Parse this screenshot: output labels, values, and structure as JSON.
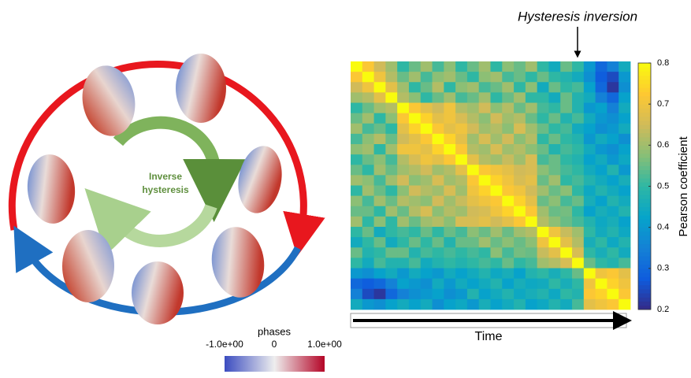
{
  "chart_data": {
    "type": "heatmap",
    "annotation": "Hysteresis inversion",
    "x_label": "Time",
    "colorbar_label": "Pearson coefficient",
    "zlim": [
      0.2,
      0.8
    ],
    "zticks": [
      0.2,
      0.3,
      0.4,
      0.5,
      0.6,
      0.7,
      0.8
    ],
    "colormap": [
      "#352a87",
      "#0f5cdd",
      "#1481d6",
      "#06a4ca",
      "#2eb7a4",
      "#87bf77",
      "#d1bb59",
      "#fec832",
      "#f9fb0e"
    ],
    "values": [
      [
        0.8,
        0.72,
        0.65,
        0.6,
        0.5,
        0.55,
        0.6,
        0.52,
        0.58,
        0.5,
        0.55,
        0.6,
        0.5,
        0.58,
        0.55,
        0.6,
        0.5,
        0.45,
        0.55,
        0.5,
        0.4,
        0.3,
        0.35,
        0.45
      ],
      [
        0.72,
        0.8,
        0.7,
        0.62,
        0.55,
        0.6,
        0.52,
        0.58,
        0.6,
        0.55,
        0.5,
        0.58,
        0.6,
        0.52,
        0.55,
        0.5,
        0.55,
        0.5,
        0.48,
        0.45,
        0.38,
        0.28,
        0.25,
        0.4
      ],
      [
        0.65,
        0.7,
        0.8,
        0.68,
        0.6,
        0.5,
        0.55,
        0.62,
        0.5,
        0.58,
        0.6,
        0.52,
        0.55,
        0.6,
        0.5,
        0.58,
        0.45,
        0.55,
        0.5,
        0.52,
        0.42,
        0.3,
        0.22,
        0.38
      ],
      [
        0.6,
        0.62,
        0.68,
        0.8,
        0.62,
        0.58,
        0.5,
        0.55,
        0.6,
        0.52,
        0.55,
        0.6,
        0.5,
        0.55,
        0.6,
        0.5,
        0.5,
        0.45,
        0.55,
        0.48,
        0.45,
        0.35,
        0.3,
        0.42
      ],
      [
        0.5,
        0.55,
        0.6,
        0.62,
        0.8,
        0.72,
        0.68,
        0.65,
        0.7,
        0.62,
        0.6,
        0.65,
        0.58,
        0.62,
        0.55,
        0.6,
        0.52,
        0.5,
        0.55,
        0.48,
        0.4,
        0.42,
        0.35,
        0.45
      ],
      [
        0.55,
        0.6,
        0.5,
        0.58,
        0.72,
        0.8,
        0.74,
        0.68,
        0.7,
        0.66,
        0.62,
        0.58,
        0.65,
        0.6,
        0.62,
        0.55,
        0.5,
        0.55,
        0.48,
        0.52,
        0.45,
        0.4,
        0.38,
        0.42
      ],
      [
        0.6,
        0.52,
        0.55,
        0.5,
        0.68,
        0.74,
        0.8,
        0.72,
        0.68,
        0.7,
        0.65,
        0.6,
        0.62,
        0.58,
        0.66,
        0.6,
        0.55,
        0.5,
        0.52,
        0.45,
        0.42,
        0.38,
        0.4,
        0.45
      ],
      [
        0.52,
        0.58,
        0.62,
        0.55,
        0.65,
        0.68,
        0.72,
        0.8,
        0.74,
        0.68,
        0.6,
        0.66,
        0.6,
        0.65,
        0.58,
        0.62,
        0.5,
        0.55,
        0.5,
        0.48,
        0.4,
        0.45,
        0.42,
        0.38
      ],
      [
        0.58,
        0.6,
        0.5,
        0.6,
        0.7,
        0.7,
        0.68,
        0.74,
        0.8,
        0.72,
        0.62,
        0.6,
        0.66,
        0.6,
        0.62,
        0.58,
        0.55,
        0.48,
        0.52,
        0.5,
        0.45,
        0.4,
        0.38,
        0.42
      ],
      [
        0.5,
        0.55,
        0.58,
        0.52,
        0.62,
        0.66,
        0.7,
        0.68,
        0.72,
        0.8,
        0.68,
        0.62,
        0.6,
        0.64,
        0.6,
        0.66,
        0.52,
        0.55,
        0.5,
        0.48,
        0.42,
        0.45,
        0.4,
        0.44
      ],
      [
        0.55,
        0.5,
        0.6,
        0.55,
        0.6,
        0.62,
        0.65,
        0.6,
        0.62,
        0.68,
        0.8,
        0.72,
        0.7,
        0.68,
        0.65,
        0.66,
        0.58,
        0.55,
        0.52,
        0.5,
        0.45,
        0.42,
        0.48,
        0.4
      ],
      [
        0.6,
        0.58,
        0.52,
        0.6,
        0.65,
        0.58,
        0.6,
        0.66,
        0.6,
        0.62,
        0.72,
        0.8,
        0.74,
        0.7,
        0.66,
        0.68,
        0.55,
        0.6,
        0.5,
        0.52,
        0.48,
        0.45,
        0.42,
        0.46
      ],
      [
        0.5,
        0.6,
        0.55,
        0.5,
        0.58,
        0.65,
        0.62,
        0.6,
        0.66,
        0.6,
        0.7,
        0.74,
        0.8,
        0.72,
        0.7,
        0.65,
        0.6,
        0.55,
        0.58,
        0.5,
        0.44,
        0.48,
        0.45,
        0.42
      ],
      [
        0.58,
        0.52,
        0.6,
        0.55,
        0.62,
        0.6,
        0.58,
        0.65,
        0.6,
        0.64,
        0.68,
        0.7,
        0.72,
        0.8,
        0.74,
        0.68,
        0.55,
        0.58,
        0.52,
        0.55,
        0.46,
        0.42,
        0.48,
        0.45
      ],
      [
        0.55,
        0.55,
        0.5,
        0.6,
        0.55,
        0.62,
        0.66,
        0.58,
        0.62,
        0.6,
        0.65,
        0.66,
        0.7,
        0.74,
        0.8,
        0.72,
        0.6,
        0.55,
        0.56,
        0.5,
        0.42,
        0.46,
        0.44,
        0.48
      ],
      [
        0.6,
        0.5,
        0.58,
        0.5,
        0.6,
        0.55,
        0.6,
        0.62,
        0.58,
        0.66,
        0.66,
        0.68,
        0.65,
        0.68,
        0.72,
        0.8,
        0.62,
        0.58,
        0.55,
        0.52,
        0.48,
        0.44,
        0.46,
        0.42
      ],
      [
        0.5,
        0.55,
        0.45,
        0.5,
        0.52,
        0.5,
        0.55,
        0.5,
        0.55,
        0.52,
        0.58,
        0.55,
        0.6,
        0.55,
        0.6,
        0.62,
        0.8,
        0.7,
        0.64,
        0.6,
        0.5,
        0.45,
        0.48,
        0.44
      ],
      [
        0.45,
        0.5,
        0.55,
        0.45,
        0.5,
        0.55,
        0.5,
        0.55,
        0.48,
        0.55,
        0.55,
        0.6,
        0.55,
        0.58,
        0.55,
        0.58,
        0.7,
        0.8,
        0.68,
        0.62,
        0.46,
        0.5,
        0.44,
        0.48
      ],
      [
        0.55,
        0.48,
        0.5,
        0.55,
        0.55,
        0.48,
        0.52,
        0.5,
        0.52,
        0.5,
        0.52,
        0.5,
        0.58,
        0.52,
        0.56,
        0.55,
        0.64,
        0.68,
        0.8,
        0.66,
        0.5,
        0.46,
        0.5,
        0.45
      ],
      [
        0.5,
        0.45,
        0.52,
        0.48,
        0.48,
        0.52,
        0.45,
        0.48,
        0.5,
        0.48,
        0.5,
        0.52,
        0.5,
        0.55,
        0.5,
        0.52,
        0.6,
        0.62,
        0.66,
        0.8,
        0.55,
        0.5,
        0.48,
        0.52
      ],
      [
        0.4,
        0.38,
        0.42,
        0.45,
        0.4,
        0.45,
        0.42,
        0.4,
        0.45,
        0.42,
        0.45,
        0.48,
        0.44,
        0.46,
        0.42,
        0.48,
        0.5,
        0.46,
        0.5,
        0.55,
        0.8,
        0.7,
        0.72,
        0.68
      ],
      [
        0.3,
        0.28,
        0.3,
        0.35,
        0.42,
        0.4,
        0.38,
        0.45,
        0.4,
        0.45,
        0.42,
        0.45,
        0.48,
        0.42,
        0.46,
        0.44,
        0.45,
        0.5,
        0.46,
        0.5,
        0.7,
        0.8,
        0.74,
        0.7
      ],
      [
        0.35,
        0.25,
        0.22,
        0.3,
        0.35,
        0.38,
        0.4,
        0.42,
        0.38,
        0.4,
        0.48,
        0.42,
        0.45,
        0.48,
        0.44,
        0.46,
        0.48,
        0.44,
        0.5,
        0.48,
        0.72,
        0.74,
        0.8,
        0.72
      ],
      [
        0.45,
        0.4,
        0.38,
        0.42,
        0.45,
        0.42,
        0.45,
        0.38,
        0.42,
        0.44,
        0.4,
        0.46,
        0.42,
        0.45,
        0.48,
        0.42,
        0.44,
        0.48,
        0.45,
        0.52,
        0.68,
        0.7,
        0.72,
        0.8
      ]
    ]
  },
  "diagram": {
    "center_label": [
      "Inverse",
      "hysteresis"
    ],
    "phase_bar": {
      "title": "phases",
      "ticks": [
        "-1.0e+00",
        "0",
        "1.0e+00"
      ]
    }
  }
}
